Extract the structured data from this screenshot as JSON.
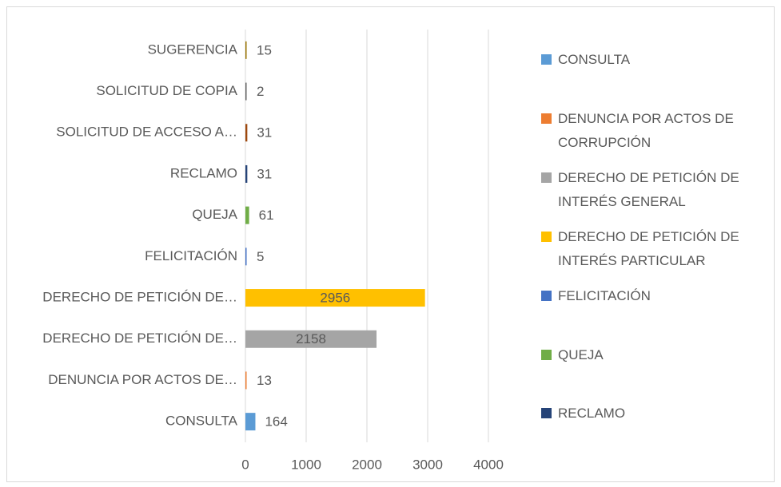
{
  "chart_data": {
    "type": "barh",
    "categories": [
      "CONSULTA",
      "DENUNCIA POR ACTOS DE…",
      "DERECHO DE PETICIÓN DE…",
      "DERECHO DE PETICIÓN DE…",
      "FELICITACIÓN",
      "QUEJA",
      "RECLAMO",
      "SOLICITUD DE ACCESO A…",
      "SOLICITUD DE COPIA",
      "SUGERENCIA"
    ],
    "values": [
      164,
      13,
      2158,
      2956,
      5,
      61,
      31,
      31,
      2,
      15
    ],
    "colors": [
      "#5b9bd5",
      "#ed7d31",
      "#a5a5a5",
      "#ffc000",
      "#4472c4",
      "#70ad47",
      "#264478",
      "#9e480e",
      "#636363",
      "#997300"
    ],
    "xlim": [
      0,
      4000
    ],
    "xticks": [
      0,
      1000,
      2000,
      3000,
      4000
    ],
    "grid": true,
    "legend": [
      {
        "name": "CONSULTA",
        "color": "#5b9bd5"
      },
      {
        "name": "DENUNCIA POR ACTOS DE CORRUPCIÓN",
        "color": "#ed7d31"
      },
      {
        "name": "DERECHO DE PETICIÓN DE INTERÉS GENERAL",
        "color": "#a5a5a5"
      },
      {
        "name": "DERECHO DE PETICIÓN DE INTERÉS PARTICULAR",
        "color": "#ffc000"
      },
      {
        "name": "FELICITACIÓN",
        "color": "#4472c4"
      },
      {
        "name": "QUEJA",
        "color": "#70ad47"
      },
      {
        "name": "RECLAMO",
        "color": "#264478"
      }
    ]
  }
}
